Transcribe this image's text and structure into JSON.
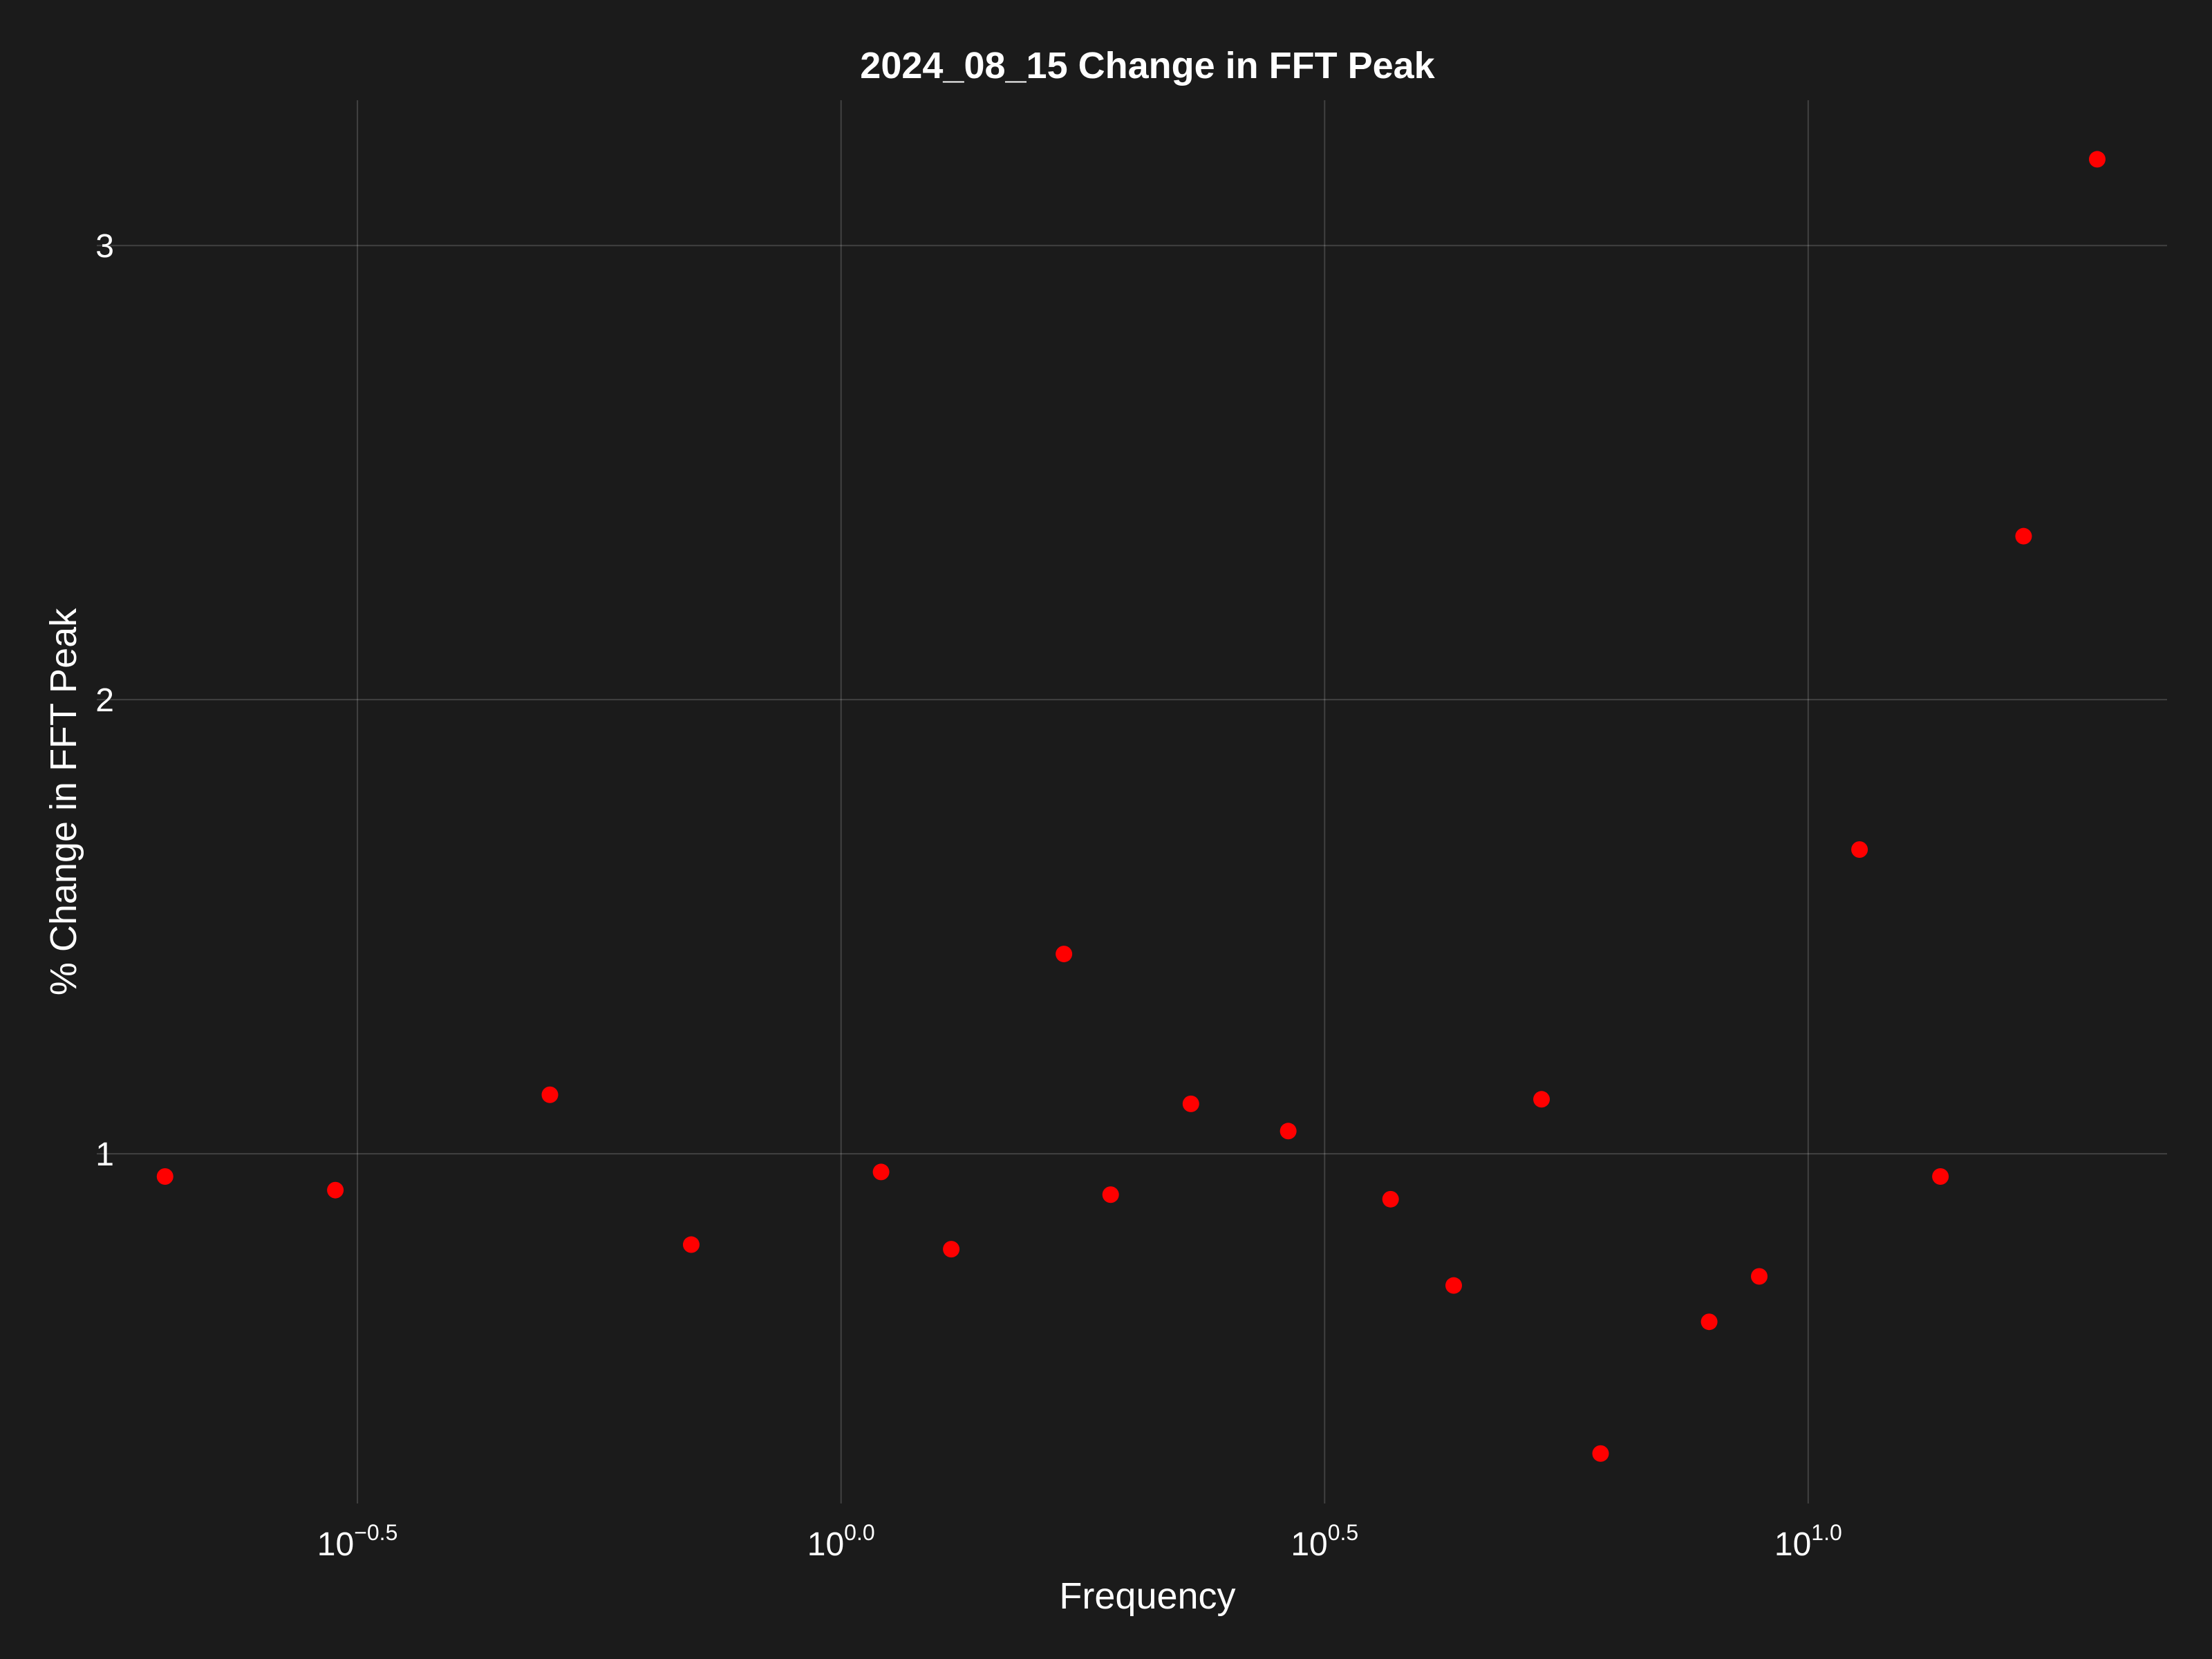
{
  "colors": {
    "background": "#1b1b1b",
    "text": "#ffffff",
    "marker": "#ff0000"
  },
  "chart_data": {
    "type": "scatter",
    "title": "2024_08_15 Change in FFT Peak",
    "xlabel": "Frequency",
    "ylabel": "% Change in FFT Peak",
    "xscale": "log10",
    "xlim": [
      0.17,
      23.5
    ],
    "ylim": [
      0.23,
      3.32
    ],
    "grid": true,
    "legend": "none",
    "x_ticks": [
      {
        "value": 0.3162,
        "base": "10",
        "exponent": "−0.5"
      },
      {
        "value": 1.0,
        "base": "10",
        "exponent": "0.0"
      },
      {
        "value": 3.1623,
        "base": "10",
        "exponent": "0.5"
      },
      {
        "value": 10.0,
        "base": "10",
        "exponent": "1.0"
      }
    ],
    "y_ticks": [
      {
        "value": 1,
        "label": "1"
      },
      {
        "value": 2,
        "label": "2"
      },
      {
        "value": 3,
        "label": "3"
      }
    ],
    "series": [
      {
        "marker_color": "#ff0000",
        "points": [
          {
            "x": 0.2,
            "y": 0.95
          },
          {
            "x": 0.3,
            "y": 0.92
          },
          {
            "x": 0.5,
            "y": 1.13
          },
          {
            "x": 0.7,
            "y": 0.8
          },
          {
            "x": 1.1,
            "y": 0.96
          },
          {
            "x": 1.3,
            "y": 0.79
          },
          {
            "x": 1.7,
            "y": 1.44
          },
          {
            "x": 1.9,
            "y": 0.91
          },
          {
            "x": 2.3,
            "y": 1.11
          },
          {
            "x": 2.9,
            "y": 1.05
          },
          {
            "x": 3.7,
            "y": 0.9
          },
          {
            "x": 4.3,
            "y": 0.71
          },
          {
            "x": 5.3,
            "y": 1.12
          },
          {
            "x": 6.1,
            "y": 0.34
          },
          {
            "x": 7.9,
            "y": 0.63
          },
          {
            "x": 8.9,
            "y": 0.73
          },
          {
            "x": 11.3,
            "y": 1.67
          },
          {
            "x": 13.7,
            "y": 0.95
          },
          {
            "x": 16.7,
            "y": 2.36
          },
          {
            "x": 19.9,
            "y": 3.19
          }
        ]
      }
    ]
  }
}
